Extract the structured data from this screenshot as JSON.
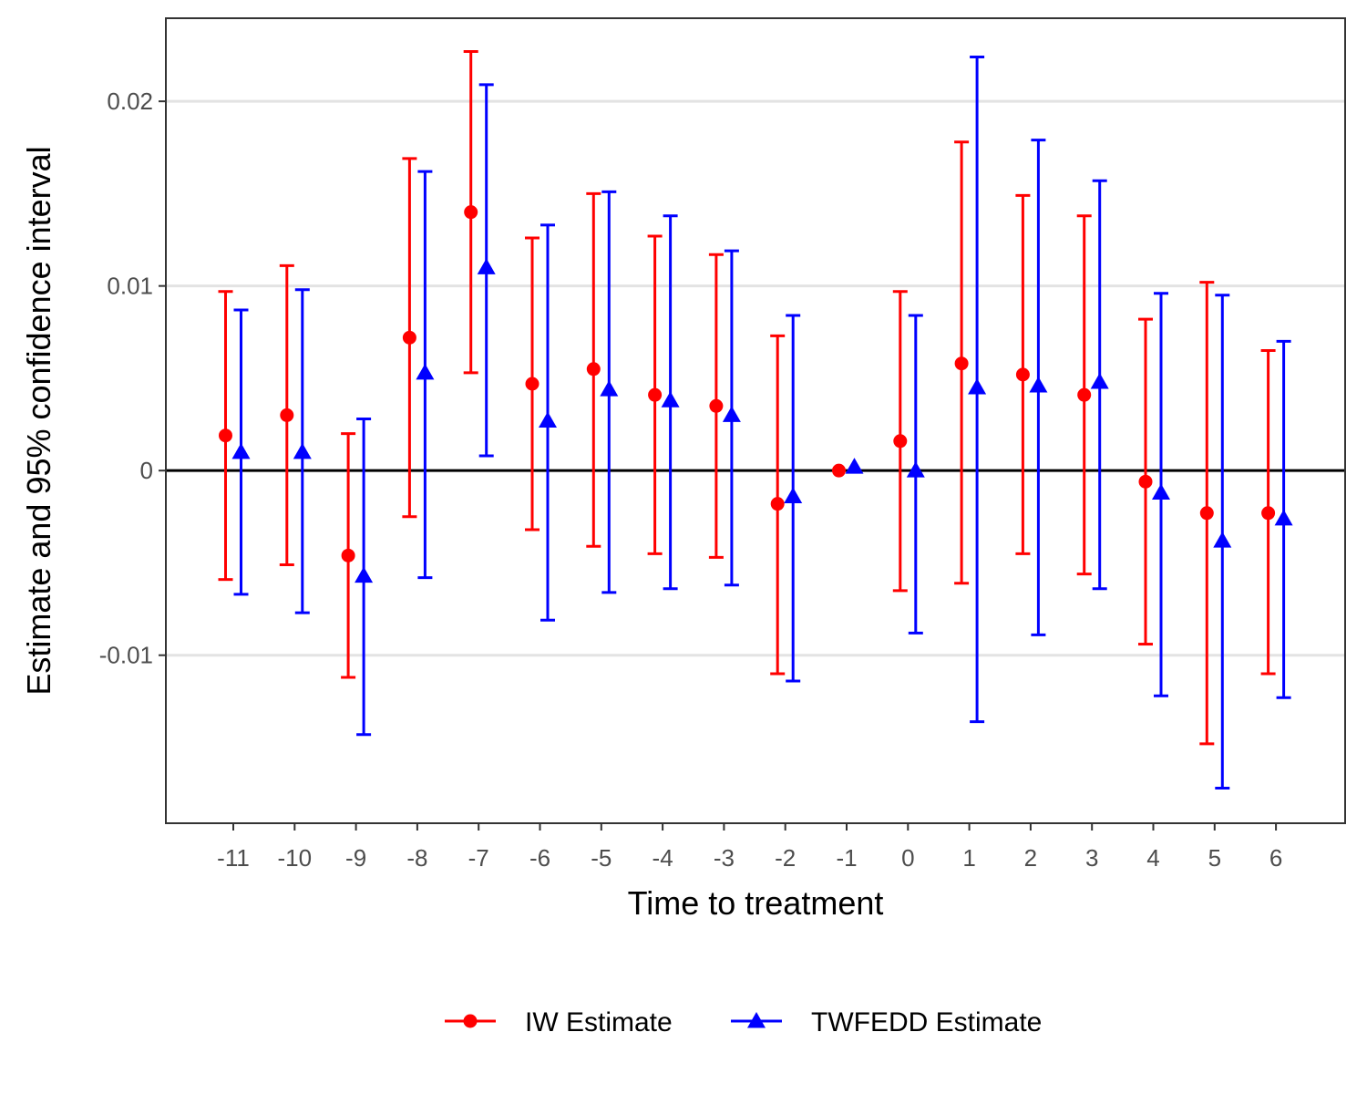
{
  "chart_data": {
    "type": "scatter",
    "xlabel": "Time to treatment",
    "ylabel": "Estimate and 95% confidence interval",
    "categories": [
      "-11",
      "-10",
      "-9",
      "-8",
      "-7",
      "-6",
      "-5",
      "-4",
      "-3",
      "-2",
      "-1",
      "0",
      "1",
      "2",
      "3",
      "4",
      "5",
      "6"
    ],
    "ylim": [
      -0.0191,
      0.0245
    ],
    "yticks": [
      -0.01,
      0,
      0.01,
      0.02
    ],
    "ytick_labels": [
      "-0.01",
      "0",
      "0.01",
      "0.02"
    ],
    "grid": "horizontal major",
    "reference_line_y": 0,
    "legend_position": "bottom",
    "series": [
      {
        "name": "IW Estimate",
        "color": "#ff0000",
        "marker": "circle",
        "values": [
          0.0019,
          0.003,
          -0.0046,
          0.0072,
          0.014,
          0.0047,
          0.0055,
          0.0041,
          0.0035,
          -0.0018,
          0.0,
          0.0016,
          0.0058,
          0.0052,
          0.0041,
          -0.0006,
          -0.0023,
          -0.0023
        ],
        "lower": [
          -0.0059,
          -0.0051,
          -0.0112,
          -0.0025,
          0.0053,
          -0.0032,
          -0.0041,
          -0.0045,
          -0.0047,
          -0.011,
          0.0,
          -0.0065,
          -0.0061,
          -0.0045,
          -0.0056,
          -0.0094,
          -0.0148,
          -0.011
        ],
        "upper": [
          0.0097,
          0.0111,
          0.002,
          0.0169,
          0.0227,
          0.0126,
          0.015,
          0.0127,
          0.0117,
          0.0073,
          0.0,
          0.0097,
          0.0178,
          0.0149,
          0.0138,
          0.0082,
          0.0102,
          0.0065
        ]
      },
      {
        "name": "TWFEDD Estimate",
        "color": "#0000ff",
        "marker": "triangle",
        "values": [
          0.001,
          0.001,
          -0.0057,
          0.0053,
          0.011,
          0.0027,
          0.0044,
          0.0038,
          0.003,
          -0.0014,
          0.0002,
          0.0,
          0.0045,
          0.0046,
          0.0048,
          -0.0012,
          -0.0038,
          -0.0026
        ],
        "lower": [
          -0.0067,
          -0.0077,
          -0.0143,
          -0.0058,
          0.0008,
          -0.0081,
          -0.0066,
          -0.0064,
          -0.0062,
          -0.0114,
          0.0,
          -0.0088,
          -0.0136,
          -0.0089,
          -0.0064,
          -0.0122,
          -0.0172,
          -0.0123
        ],
        "upper": [
          0.0087,
          0.0098,
          0.0028,
          0.0162,
          0.0209,
          0.0133,
          0.0151,
          0.0138,
          0.0119,
          0.0084,
          0.0,
          0.0084,
          0.0224,
          0.0179,
          0.0157,
          0.0096,
          0.0095,
          0.007
        ]
      }
    ]
  }
}
